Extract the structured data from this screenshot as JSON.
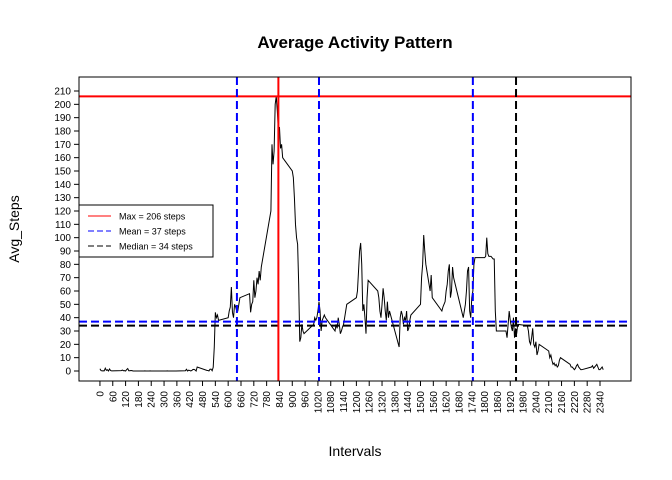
{
  "chart_data": {
    "type": "line",
    "title": "Average Activity Pattern",
    "x_label": "Intervals",
    "y_label": "Avg_Steps",
    "x": [
      0,
      5,
      10,
      15,
      20,
      25,
      30,
      35,
      40,
      45,
      50,
      55,
      100,
      105,
      110,
      115,
      120,
      125,
      130,
      135,
      140,
      145,
      150,
      155,
      200,
      205,
      210,
      215,
      220,
      225,
      230,
      235,
      240,
      245,
      250,
      255,
      300,
      305,
      310,
      315,
      320,
      325,
      330,
      335,
      340,
      345,
      350,
      355,
      400,
      405,
      410,
      415,
      420,
      425,
      430,
      435,
      440,
      445,
      450,
      455,
      500,
      505,
      510,
      515,
      520,
      525,
      530,
      535,
      540,
      545,
      550,
      555,
      600,
      605,
      610,
      615,
      620,
      625,
      630,
      635,
      640,
      645,
      650,
      655,
      700,
      705,
      710,
      715,
      720,
      725,
      730,
      735,
      740,
      745,
      750,
      755,
      800,
      805,
      810,
      815,
      820,
      825,
      830,
      835,
      840,
      845,
      850,
      855,
      900,
      905,
      910,
      915,
      920,
      925,
      930,
      935,
      940,
      945,
      950,
      955,
      1000,
      1005,
      1010,
      1015,
      1020,
      1025,
      1030,
      1035,
      1040,
      1045,
      1050,
      1055,
      1100,
      1105,
      1110,
      1115,
      1120,
      1125,
      1130,
      1135,
      1140,
      1145,
      1150,
      1155,
      1200,
      1205,
      1210,
      1215,
      1220,
      1225,
      1230,
      1235,
      1240,
      1245,
      1250,
      1255,
      1300,
      1305,
      1310,
      1315,
      1320,
      1325,
      1330,
      1335,
      1340,
      1345,
      1350,
      1355,
      1400,
      1405,
      1410,
      1415,
      1420,
      1425,
      1430,
      1435,
      1440,
      1445,
      1450,
      1455,
      1500,
      1505,
      1510,
      1515,
      1520,
      1525,
      1530,
      1535,
      1540,
      1545,
      1550,
      1555,
      1600,
      1605,
      1610,
      1615,
      1620,
      1625,
      1630,
      1635,
      1640,
      1645,
      1650,
      1655,
      1700,
      1705,
      1710,
      1715,
      1720,
      1725,
      1730,
      1735,
      1740,
      1745,
      1750,
      1755,
      1800,
      1805,
      1810,
      1815,
      1820,
      1825,
      1830,
      1835,
      1840,
      1845,
      1850,
      1855,
      1900,
      1905,
      1910,
      1915,
      1920,
      1925,
      1930,
      1935,
      1940,
      1945,
      1950,
      1955,
      2000,
      2005,
      2010,
      2015,
      2020,
      2025,
      2030,
      2035,
      2040,
      2045,
      2050,
      2055,
      2100,
      2105,
      2110,
      2115,
      2120,
      2125,
      2130,
      2135,
      2140,
      2145,
      2150,
      2155,
      2200,
      2205,
      2210,
      2215,
      2220,
      2225,
      2230,
      2235,
      2240,
      2245,
      2250,
      2255,
      2300,
      2305,
      2310,
      2315,
      2320,
      2325,
      2330,
      2335,
      2340,
      2345,
      2350,
      2355
    ],
    "values": [
      1.7,
      0.3,
      0.1,
      0.2,
      0.1,
      2.1,
      0.5,
      0.9,
      0,
      1.5,
      0.3,
      0.1,
      0.3,
      0.7,
      0.2,
      0.3,
      0,
      1.1,
      1.8,
      0.2,
      0.2,
      0.4,
      0.3,
      0,
      0,
      0,
      0.1,
      0,
      0,
      0,
      0,
      0.1,
      0,
      0,
      0,
      0,
      0,
      0,
      0,
      0.1,
      0,
      0,
      0,
      0,
      0,
      0,
      0,
      0,
      0.2,
      1.3,
      0,
      0.6,
      0.4,
      0,
      0.4,
      1.1,
      1.2,
      0.8,
      0,
      3.0,
      0.5,
      0.4,
      0,
      1.3,
      1.4,
      0.2,
      2.8,
      18,
      44,
      40,
      42,
      38,
      40,
      45,
      48,
      63,
      44,
      40,
      50,
      48,
      45,
      45,
      50,
      55,
      58,
      44,
      50,
      52,
      68,
      55,
      60,
      70,
      65,
      75,
      68,
      78,
      120,
      170,
      155,
      165,
      200,
      206,
      195,
      180,
      183,
      167,
      170,
      160,
      150,
      145,
      130,
      110,
      100,
      95,
      65,
      22,
      25,
      35,
      30,
      28,
      35,
      40,
      38,
      40,
      45,
      52,
      45,
      30,
      38,
      40,
      42,
      40,
      30,
      35,
      32,
      40,
      35,
      28,
      30,
      33,
      35,
      40,
      45,
      50,
      55,
      60,
      75,
      90,
      96,
      80,
      45,
      50,
      40,
      28,
      55,
      68,
      60,
      55,
      45,
      40,
      50,
      62,
      55,
      45,
      38,
      52,
      40,
      45,
      18,
      40,
      45,
      42,
      35,
      40,
      38,
      45,
      30,
      32,
      38,
      42,
      50,
      70,
      80,
      102,
      90,
      80,
      75,
      70,
      65,
      60,
      72,
      55,
      45,
      48,
      50,
      52,
      60,
      65,
      75,
      80,
      55,
      60,
      78,
      70,
      40,
      45,
      50,
      60,
      75,
      78,
      45,
      40,
      55,
      60,
      80,
      85,
      85,
      86,
      100,
      88,
      86,
      86,
      86,
      85,
      84,
      84,
      45,
      30,
      30,
      25,
      35,
      45,
      38,
      33,
      30,
      40,
      25,
      32,
      28,
      35,
      34,
      30,
      22,
      20,
      25,
      32,
      20,
      18,
      22,
      12,
      15,
      20,
      15,
      10,
      12,
      8,
      5,
      6,
      4,
      5,
      3,
      4,
      8,
      10,
      5,
      3,
      3,
      2,
      1,
      2,
      4,
      5,
      3,
      2,
      1,
      1,
      3,
      4,
      2,
      3,
      4,
      5,
      3,
      1,
      1,
      2,
      3,
      1
    ],
    "color": "#000000",
    "xlim": [
      -98,
      2485
    ],
    "ylim": [
      -7.5,
      220.5
    ],
    "xticks": [
      0,
      60,
      120,
      180,
      240,
      300,
      360,
      420,
      480,
      540,
      600,
      660,
      720,
      780,
      840,
      900,
      960,
      1020,
      1080,
      1140,
      1200,
      1260,
      1320,
      1380,
      1440,
      1500,
      1560,
      1620,
      1680,
      1740,
      1800,
      1860,
      1920,
      1980,
      2040,
      2100,
      2160,
      2220,
      2280,
      2340
    ],
    "yticks": [
      0,
      10,
      20,
      30,
      40,
      50,
      60,
      70,
      80,
      90,
      100,
      110,
      120,
      130,
      140,
      150,
      160,
      170,
      180,
      190,
      200,
      210
    ],
    "hlines": [
      {
        "value": 206,
        "color": "#ff0000",
        "dashed": false,
        "label": "Max = 206 steps"
      },
      {
        "value": 37,
        "color": "#0000ff",
        "dashed": true,
        "label": "Mean = 37 steps"
      },
      {
        "value": 34,
        "color": "#000000",
        "dashed": true,
        "label": "Median = 34 steps"
      }
    ],
    "vlines": [
      {
        "value": 835,
        "color": "#ff0000",
        "dashed": false
      },
      {
        "value": 641,
        "color": "#0000ff",
        "dashed": true
      },
      {
        "value": 1025,
        "color": "#0000ff",
        "dashed": true
      },
      {
        "value": 1745,
        "color": "#0000ff",
        "dashed": true
      },
      {
        "value": 1947,
        "color": "#000000",
        "dashed": true
      }
    ],
    "legend": "left"
  }
}
